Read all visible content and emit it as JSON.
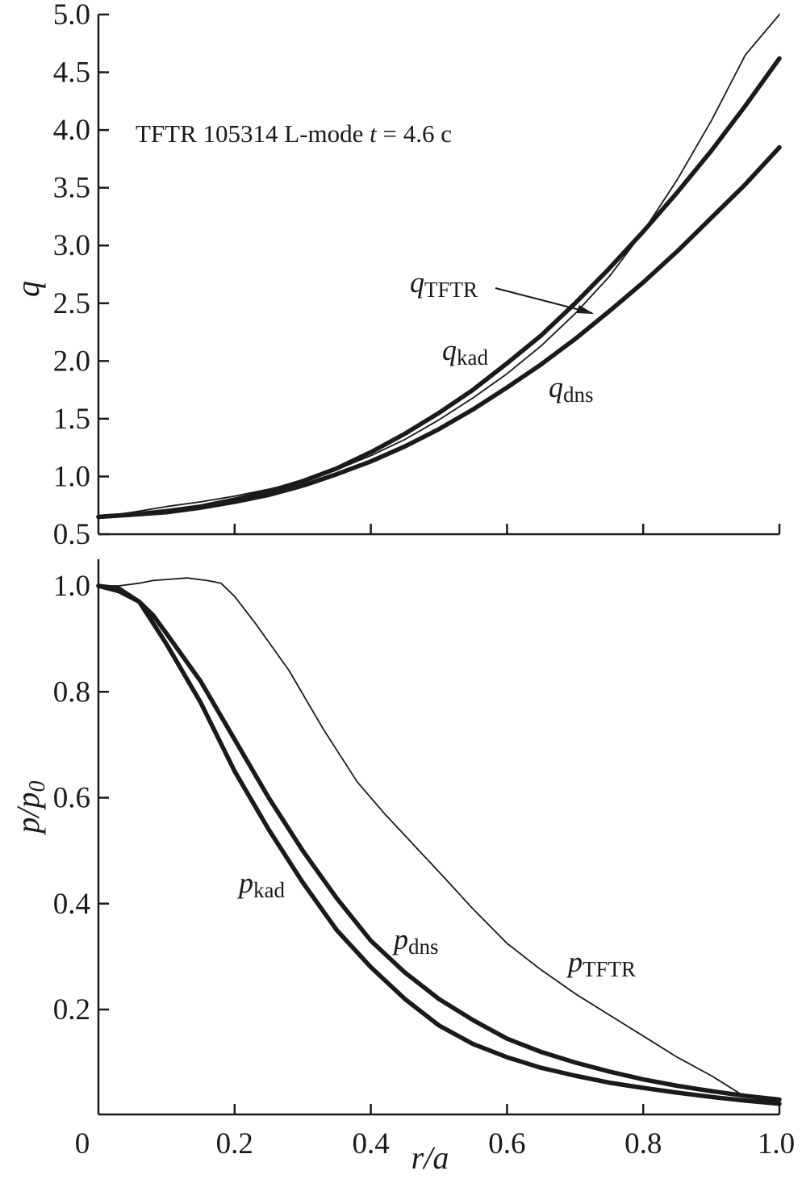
{
  "chart_data": [
    {
      "type": "line",
      "annotation": {
        "text_main": "TFTR 105314  L-mode ",
        "text_var": "t",
        "text_rest": " = 4.6 c"
      },
      "xlabel": "",
      "ylabel": "q",
      "xlim": [
        0,
        1.0
      ],
      "ylim": [
        0.5,
        5.0
      ],
      "yticks": [
        0.5,
        1.0,
        1.5,
        2.0,
        2.5,
        3.0,
        3.5,
        4.0,
        4.5,
        5.0
      ],
      "ytick_labels": [
        "0.5",
        "1.0",
        "1.5",
        "2.0",
        "2.5",
        "3.0",
        "3.5",
        "4.0",
        "4.5",
        "5.0"
      ],
      "xticks": [
        0,
        0.2,
        0.4,
        0.6,
        0.8,
        1.0
      ],
      "series": [
        {
          "base": "q",
          "sub": "kad",
          "style": "thick",
          "x": [
            0,
            0.05,
            0.1,
            0.15,
            0.2,
            0.25,
            0.3,
            0.35,
            0.4,
            0.45,
            0.5,
            0.55,
            0.6,
            0.65,
            0.7,
            0.75,
            0.8,
            0.85,
            0.9,
            0.95,
            1.0
          ],
          "y": [
            0.65,
            0.67,
            0.7,
            0.74,
            0.8,
            0.87,
            0.96,
            1.07,
            1.21,
            1.37,
            1.55,
            1.75,
            1.98,
            2.22,
            2.5,
            2.8,
            3.12,
            3.46,
            3.82,
            4.21,
            4.62
          ]
        },
        {
          "base": "q",
          "sub": "dns",
          "style": "thick",
          "x": [
            0,
            0.05,
            0.1,
            0.15,
            0.2,
            0.25,
            0.3,
            0.35,
            0.4,
            0.45,
            0.5,
            0.55,
            0.6,
            0.65,
            0.7,
            0.75,
            0.8,
            0.85,
            0.9,
            0.95,
            1.0
          ],
          "y": [
            0.65,
            0.67,
            0.69,
            0.73,
            0.78,
            0.84,
            0.92,
            1.02,
            1.13,
            1.26,
            1.41,
            1.58,
            1.77,
            1.97,
            2.19,
            2.43,
            2.68,
            2.95,
            3.24,
            3.53,
            3.85
          ]
        },
        {
          "base": "q",
          "sub": "TFTR",
          "style": "thin",
          "x": [
            0,
            0.05,
            0.1,
            0.15,
            0.2,
            0.25,
            0.3,
            0.35,
            0.4,
            0.45,
            0.5,
            0.55,
            0.6,
            0.65,
            0.7,
            0.75,
            0.8,
            0.85,
            0.9,
            0.95,
            1.0
          ],
          "y": [
            0.65,
            0.69,
            0.74,
            0.78,
            0.83,
            0.89,
            0.96,
            1.06,
            1.18,
            1.32,
            1.49,
            1.68,
            1.89,
            2.13,
            2.41,
            2.73,
            3.12,
            3.57,
            4.08,
            4.65,
            5.0
          ]
        }
      ]
    },
    {
      "type": "line",
      "xlabel": "r/a",
      "ylabel": "p/p0",
      "ylabel_parts": {
        "base": "p/p",
        "sub": "0"
      },
      "xlim": [
        0,
        1.0
      ],
      "ylim": [
        0,
        1.05
      ],
      "yticks": [
        0.2,
        0.4,
        0.6,
        0.8,
        1.0
      ],
      "ytick_labels": [
        "0.2",
        "0.4",
        "0.6",
        "0.8",
        "1.0"
      ],
      "xticks": [
        0,
        0.2,
        0.4,
        0.6,
        0.8,
        1.0
      ],
      "xtick_labels": [
        "0",
        "0.2",
        "0.4",
        "0.6",
        "0.8",
        "1.0"
      ],
      "series": [
        {
          "base": "p",
          "sub": "kad",
          "style": "thick",
          "x": [
            0,
            0.03,
            0.06,
            0.08,
            0.1,
            0.15,
            0.2,
            0.25,
            0.3,
            0.35,
            0.4,
            0.45,
            0.5,
            0.55,
            0.6,
            0.65,
            0.7,
            0.75,
            0.8,
            0.85,
            0.9,
            0.95,
            1.0
          ],
          "y": [
            1.0,
            0.99,
            0.97,
            0.93,
            0.89,
            0.78,
            0.65,
            0.54,
            0.44,
            0.35,
            0.28,
            0.22,
            0.17,
            0.135,
            0.11,
            0.09,
            0.075,
            0.062,
            0.052,
            0.043,
            0.035,
            0.028,
            0.022
          ]
        },
        {
          "base": "p",
          "sub": "dns",
          "style": "thick",
          "x": [
            0,
            0.03,
            0.06,
            0.08,
            0.1,
            0.15,
            0.2,
            0.25,
            0.3,
            0.35,
            0.4,
            0.45,
            0.5,
            0.55,
            0.6,
            0.65,
            0.7,
            0.75,
            0.8,
            0.85,
            0.9,
            0.95,
            1.0
          ],
          "y": [
            1.0,
            0.995,
            0.97,
            0.945,
            0.91,
            0.82,
            0.71,
            0.6,
            0.5,
            0.41,
            0.33,
            0.27,
            0.22,
            0.18,
            0.145,
            0.12,
            0.1,
            0.083,
            0.068,
            0.056,
            0.046,
            0.037,
            0.03
          ]
        },
        {
          "base": "p",
          "sub": "TFTR",
          "style": "thin",
          "x": [
            0,
            0.03,
            0.06,
            0.08,
            0.1,
            0.13,
            0.16,
            0.18,
            0.2,
            0.23,
            0.28,
            0.33,
            0.38,
            0.42,
            0.5,
            0.55,
            0.6,
            0.65,
            0.7,
            0.75,
            0.8,
            0.85,
            0.9,
            0.95,
            1.0
          ],
          "y": [
            1.0,
            1.0,
            1.005,
            1.01,
            1.012,
            1.015,
            1.01,
            1.005,
            0.98,
            0.93,
            0.84,
            0.73,
            0.63,
            0.57,
            0.46,
            0.39,
            0.325,
            0.275,
            0.23,
            0.19,
            0.15,
            0.11,
            0.075,
            0.035,
            0.025
          ]
        }
      ]
    }
  ]
}
